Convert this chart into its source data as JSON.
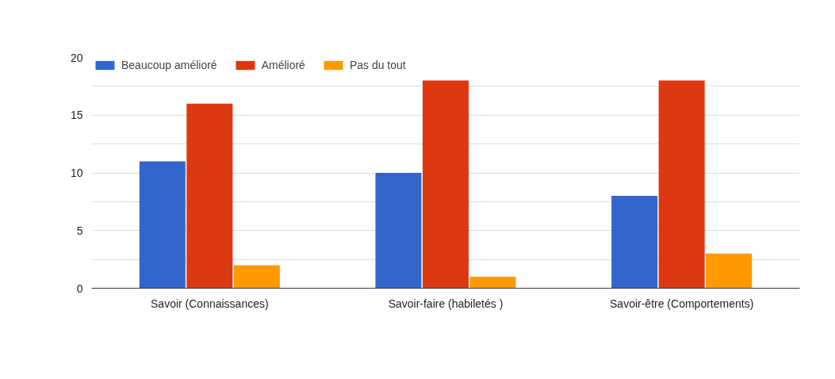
{
  "chart_data": {
    "type": "bar",
    "categories": [
      "Savoir (Connaissances)",
      "Savoir-faire (habiletés )",
      "Savoir-être (Comportements)"
    ],
    "series": [
      {
        "name": "Beaucoup amélioré",
        "color": "#3366cc",
        "values": [
          11,
          10,
          8
        ]
      },
      {
        "name": "Amélioré",
        "color": "#dc3912",
        "values": [
          16,
          18,
          18
        ]
      },
      {
        "name": "Pas du tout",
        "color": "#ff9900",
        "values": [
          2,
          1,
          3
        ]
      }
    ],
    "ylim": [
      0,
      20
    ],
    "yticks": [
      0,
      {
        "value": 2.5,
        "label": null
      },
      5,
      {
        "value": 7.5,
        "label": null
      },
      10,
      {
        "value": 12.5,
        "label": null
      },
      15,
      {
        "value": 17.5,
        "label": null
      },
      20
    ],
    "grid": "y",
    "legend": "top left"
  }
}
